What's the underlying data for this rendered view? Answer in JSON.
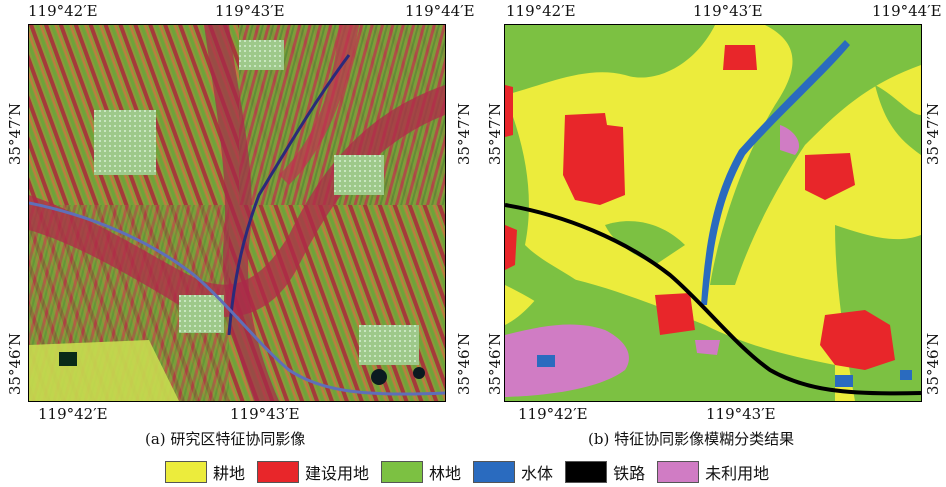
{
  "panel_a": {
    "top_labels": [
      "119°42′E",
      "119°43′E",
      "119°44′E"
    ],
    "bottom_labels": [
      "119°42′E",
      "119°43′E"
    ],
    "left_labels": [
      "35°47′N",
      "35°46′N"
    ],
    "right_labels": [
      "35°47′N",
      "35°46′N"
    ],
    "caption": "(a) 研究区特征协同影像"
  },
  "panel_b": {
    "top_labels": [
      "119°42′E",
      "119°43′E",
      "119°44′E"
    ],
    "bottom_labels": [
      "119°42′E",
      "119°43′E"
    ],
    "left_labels": [
      "35°47′N",
      "35°46′N"
    ],
    "right_labels": [
      "35°47′N",
      "35°46′N"
    ],
    "caption": "(b) 特征协同影像模糊分类结果"
  },
  "legend": [
    {
      "label": "耕地",
      "color": "#ecec3c"
    },
    {
      "label": "建设用地",
      "color": "#e8262a"
    },
    {
      "label": "林地",
      "color": "#7cc142"
    },
    {
      "label": "水体",
      "color": "#2a6bbf"
    },
    {
      "label": "铁路",
      "color": "#000000"
    },
    {
      "label": "未利用地",
      "color": "#d07cc4"
    }
  ]
}
